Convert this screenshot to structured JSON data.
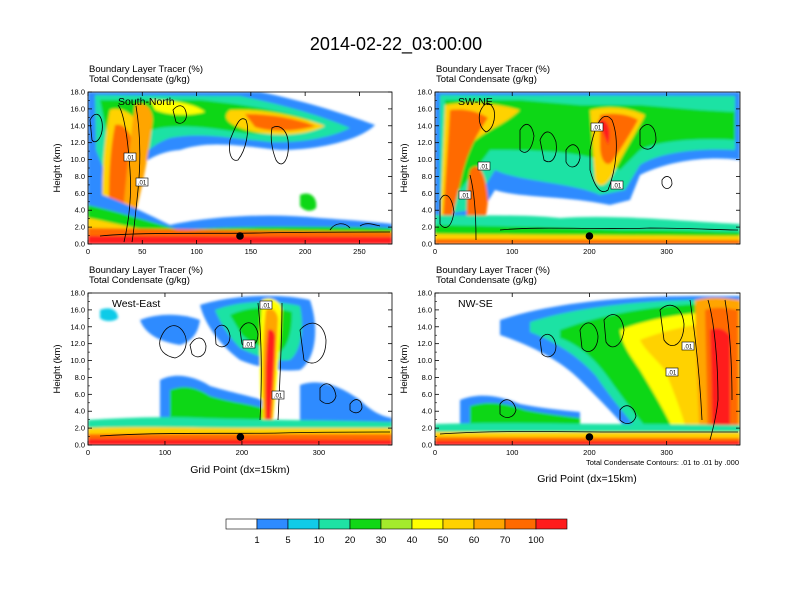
{
  "figure": {
    "title": "2014-02-22_03:00:00",
    "footnote": "Total Condensate Contours: .01 to .01 by .000"
  },
  "colorbar": {
    "colors": [
      "#ffffff",
      "#2e8bff",
      "#11cbe8",
      "#1ee2a4",
      "#11d716",
      "#a4eb2c",
      "#ffff00",
      "#ffd200",
      "#ffa500",
      "#ff6a00",
      "#ff1c1c"
    ],
    "labels": [
      "1",
      "5",
      "10",
      "20",
      "30",
      "40",
      "50",
      "60",
      "70",
      "100"
    ]
  },
  "chart_data": [
    {
      "type": "heatmap",
      "panel_label": "South-North",
      "title_line1": "Boundary Layer Tracer   (%)",
      "title_line2": "Total Condensate   (g/kg)",
      "xlabel": "",
      "ylabel": "Height (km)",
      "xlim": [
        0,
        280
      ],
      "xticks": [
        "0",
        "50",
        "100",
        "150",
        "200",
        "250"
      ],
      "xtick_values": [
        0,
        50,
        100,
        150,
        200,
        250
      ],
      "ylim": [
        0,
        18
      ],
      "yticks": [
        "0.0",
        "2.0",
        "4.0",
        "6.0",
        "8.0",
        "10.0",
        "12.0",
        "14.0",
        "16.0",
        "18.0"
      ],
      "contour_labels": [
        ".01",
        ".01"
      ],
      "marker_x": 140
    },
    {
      "type": "heatmap",
      "panel_label": "SW-NE",
      "title_line1": "Boundary Layer Tracer   (%)",
      "title_line2": "Total Condensate   (g/kg)",
      "xlabel": "",
      "ylabel": "Height (km)",
      "xlim": [
        0,
        395
      ],
      "xticks": [
        "0",
        "100",
        "200",
        "300"
      ],
      "xtick_values": [
        0,
        100,
        200,
        300
      ],
      "ylim": [
        0,
        18
      ],
      "yticks": [
        "0.0",
        "2.0",
        "4.0",
        "6.0",
        "8.0",
        "10.0",
        "12.0",
        "14.0",
        "16.0",
        "18.0"
      ],
      "contour_labels": [
        ".01",
        ".01",
        ".01",
        ".01"
      ],
      "marker_x": 200
    },
    {
      "type": "heatmap",
      "panel_label": "West-East",
      "title_line1": "Boundary Layer Tracer   (%)",
      "title_line2": "Total Condensate   (g/kg)",
      "xlabel": "Grid Point (dx=15km)",
      "ylabel": "Height (km)",
      "xlim": [
        0,
        395
      ],
      "xticks": [
        "0",
        "100",
        "200",
        "300"
      ],
      "xtick_values": [
        0,
        100,
        200,
        300
      ],
      "ylim": [
        0,
        18
      ],
      "yticks": [
        "0.0",
        "2.0",
        "4.0",
        "6.0",
        "8.0",
        "10.0",
        "12.0",
        "14.0",
        "16.0",
        "18.0"
      ],
      "contour_labels": [
        ".01",
        ".01",
        ".01"
      ],
      "marker_x": 198
    },
    {
      "type": "heatmap",
      "panel_label": "NW-SE",
      "title_line1": "Boundary Layer Tracer   (%)",
      "title_line2": "Total Condensate   (g/kg)",
      "xlabel": "Grid Point (dx=15km)",
      "ylabel": "Height (km)",
      "xlim": [
        0,
        395
      ],
      "xticks": [
        "0",
        "100",
        "200",
        "300"
      ],
      "xtick_values": [
        0,
        100,
        200,
        300
      ],
      "ylim": [
        0,
        18
      ],
      "yticks": [
        "0.0",
        "2.0",
        "4.0",
        "6.0",
        "8.0",
        "10.0",
        "12.0",
        "14.0",
        "16.0",
        "18.0"
      ],
      "contour_labels": [
        ".01",
        ".01"
      ],
      "marker_x": 200
    }
  ]
}
